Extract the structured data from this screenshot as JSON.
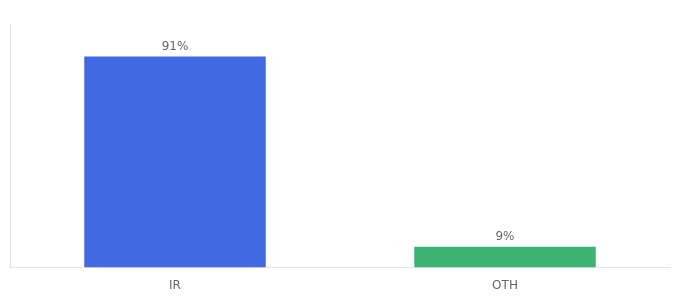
{
  "chart_data": {
    "type": "bar",
    "categories": [
      "IR",
      "OTH"
    ],
    "values": [
      91,
      9
    ],
    "value_labels": [
      "91%",
      "9%"
    ],
    "colors": [
      "#4169E1",
      "#3CB371"
    ],
    "ylim": [
      0,
      105
    ],
    "grid": false,
    "data_labels": true,
    "tick_labels": "x",
    "legend": false
  }
}
